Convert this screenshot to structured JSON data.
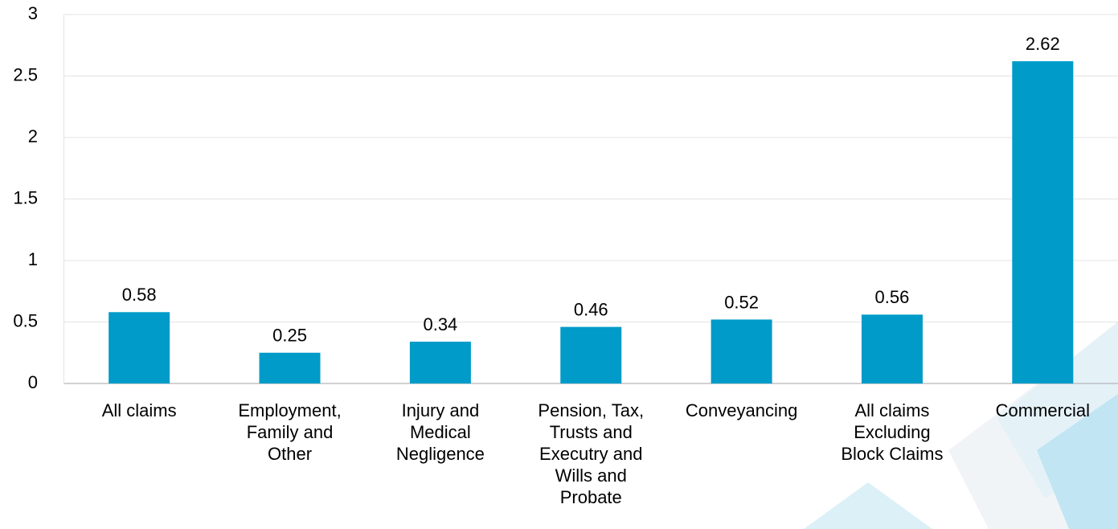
{
  "chart_data": {
    "type": "bar",
    "categories": [
      "All claims",
      "Employment, Family and Other",
      "Injury and Medical Negligence",
      "Pension, Tax, Trusts and Executry and Wills and Probate",
      "Conveyancing",
      "All claims Excluding Block Claims",
      "Commercial"
    ],
    "values": [
      0.58,
      0.25,
      0.34,
      0.46,
      0.52,
      0.56,
      2.62
    ],
    "color": "#009bc8",
    "ylim": [
      0,
      3
    ],
    "yticks": [
      0,
      0.5,
      1,
      1.5,
      2,
      2.5,
      3
    ],
    "grid": true
  }
}
